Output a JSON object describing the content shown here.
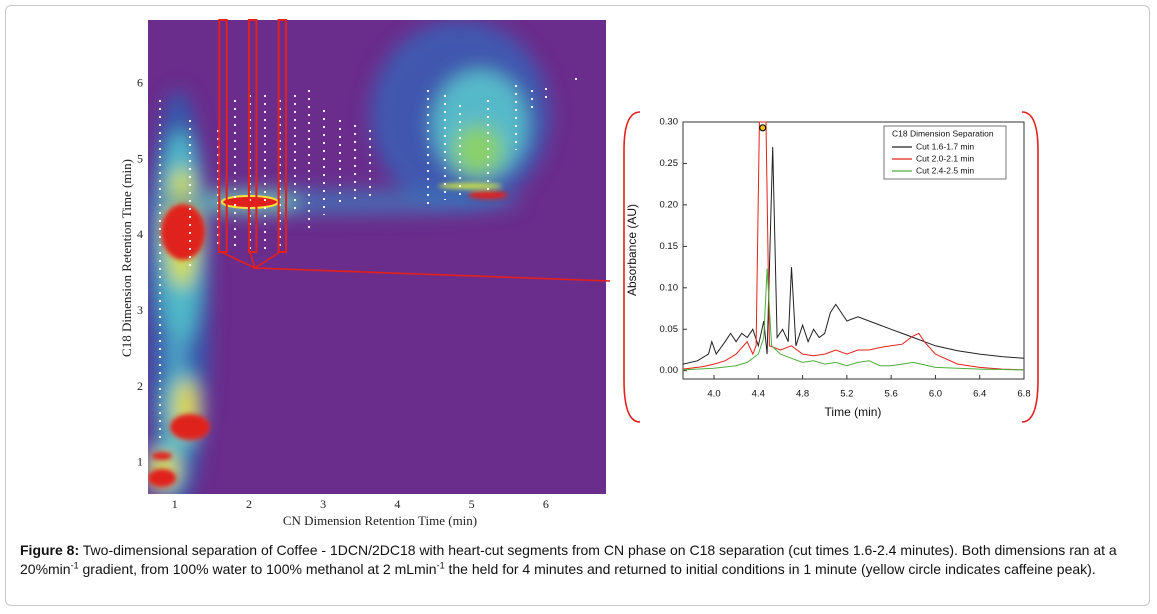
{
  "caption": {
    "label": "Figure 8:",
    "parts": [
      "Two-dimensional separation of Coffee - 1DCN/2DC18 with heart-cut segments from CN phase on C18 separation (cut times 1.6-2.4 minutes). Both dimensions ran at a 20%min",
      "-1",
      " gradient, from 100% water to 100% methanol at 2 mLmin",
      "-1",
      " the held for 4 minutes and returned to initial conditions in 1 minute (yellow circle indicates caffeine peak)."
    ]
  },
  "chart_data": [
    {
      "type": "contour",
      "xlabel": "CN Dimension Retention Time (min)",
      "ylabel": "C18 Dimension Retention Time (min)",
      "xlim": [
        0.64,
        6.81
      ],
      "ylim": [
        0.59,
        6.84
      ],
      "xticks": [
        1,
        2,
        3,
        4,
        5,
        6
      ],
      "yticks": [
        1,
        2,
        3,
        4,
        5,
        6
      ],
      "cuts": [
        [
          1.6,
          1.7
        ],
        [
          2.0,
          2.1
        ],
        [
          2.4,
          2.5
        ]
      ],
      "cut_color": "#e3201b"
    },
    {
      "type": "line",
      "xlabel": "Time (min)",
      "ylabel": "Absorbance (AU)",
      "legend_title": "C18 Dimension Separation",
      "xlim": [
        3.72,
        6.8
      ],
      "ylim": [
        -0.01,
        0.3
      ],
      "xticks": [
        {
          "value": 4.0,
          "label": "4.0"
        },
        4.4,
        4.8,
        5.2,
        5.6,
        {
          "value": 6.0,
          "label": "6.0"
        },
        6.4,
        6.8
      ],
      "yticks": [
        {
          "value": 0,
          "label": "0.00"
        },
        0.05,
        {
          "value": 0.1,
          "label": "0.10"
        },
        0.15,
        {
          "value": 0.2,
          "label": "0.20"
        },
        0.25,
        {
          "value": 0.3,
          "label": "0.30"
        }
      ],
      "marker": {
        "x": 4.44,
        "y": 0.293,
        "color": "#f5c400"
      },
      "series": [
        {
          "name": "Cut 1.6-1.7 min",
          "color": "#222222",
          "x": [
            3.72,
            3.85,
            3.95,
            3.98,
            4.02,
            4.1,
            4.15,
            4.2,
            4.25,
            4.3,
            4.35,
            4.4,
            4.45,
            4.48,
            4.53,
            4.57,
            4.62,
            4.67,
            4.7,
            4.74,
            4.8,
            4.85,
            4.9,
            4.95,
            5.0,
            5.05,
            5.1,
            5.2,
            5.3,
            5.4,
            5.5,
            5.6,
            5.7,
            5.8,
            5.9,
            6.0,
            6.2,
            6.4,
            6.6,
            6.8
          ],
          "values": [
            0.008,
            0.012,
            0.02,
            0.035,
            0.02,
            0.035,
            0.045,
            0.035,
            0.045,
            0.04,
            0.05,
            0.03,
            0.06,
            0.02,
            0.27,
            0.04,
            0.05,
            0.035,
            0.125,
            0.03,
            0.055,
            0.035,
            0.05,
            0.04,
            0.045,
            0.07,
            0.08,
            0.06,
            0.065,
            0.06,
            0.055,
            0.05,
            0.045,
            0.04,
            0.035,
            0.03,
            0.024,
            0.02,
            0.017,
            0.015
          ]
        },
        {
          "name": "Cut 2.0-2.1 min",
          "color": "#e3201b",
          "x": [
            3.72,
            3.9,
            4.0,
            4.1,
            4.2,
            4.3,
            4.35,
            4.38,
            4.41,
            4.47,
            4.5,
            4.6,
            4.7,
            4.8,
            4.9,
            5.0,
            5.1,
            5.2,
            5.3,
            5.4,
            5.5,
            5.6,
            5.7,
            5.8,
            5.85,
            5.9,
            6.0,
            6.2,
            6.4,
            6.6,
            6.8
          ],
          "values": [
            0.002,
            0.005,
            0.008,
            0.012,
            0.02,
            0.035,
            0.02,
            0.03,
            0.3,
            0.3,
            0.03,
            0.025,
            0.03,
            0.02,
            0.018,
            0.02,
            0.025,
            0.02,
            0.025,
            0.025,
            0.028,
            0.03,
            0.032,
            0.042,
            0.045,
            0.035,
            0.02,
            0.008,
            0.004,
            0.002,
            0.001
          ]
        },
        {
          "name": "Cut 2.4-2.5 min",
          "color": "#4caf3a",
          "x": [
            3.72,
            4.0,
            4.2,
            4.3,
            4.4,
            4.45,
            4.48,
            4.52,
            4.6,
            4.7,
            4.8,
            4.9,
            5.0,
            5.1,
            5.2,
            5.3,
            5.4,
            5.5,
            5.6,
            5.7,
            5.8,
            5.9,
            6.0,
            6.4,
            6.8
          ],
          "values": [
            0.001,
            0.003,
            0.006,
            0.01,
            0.02,
            0.04,
            0.123,
            0.03,
            0.02,
            0.015,
            0.01,
            0.012,
            0.008,
            0.01,
            0.006,
            0.01,
            0.012,
            0.006,
            0.006,
            0.008,
            0.01,
            0.007,
            0.004,
            0.002,
            0.001
          ]
        }
      ]
    }
  ]
}
